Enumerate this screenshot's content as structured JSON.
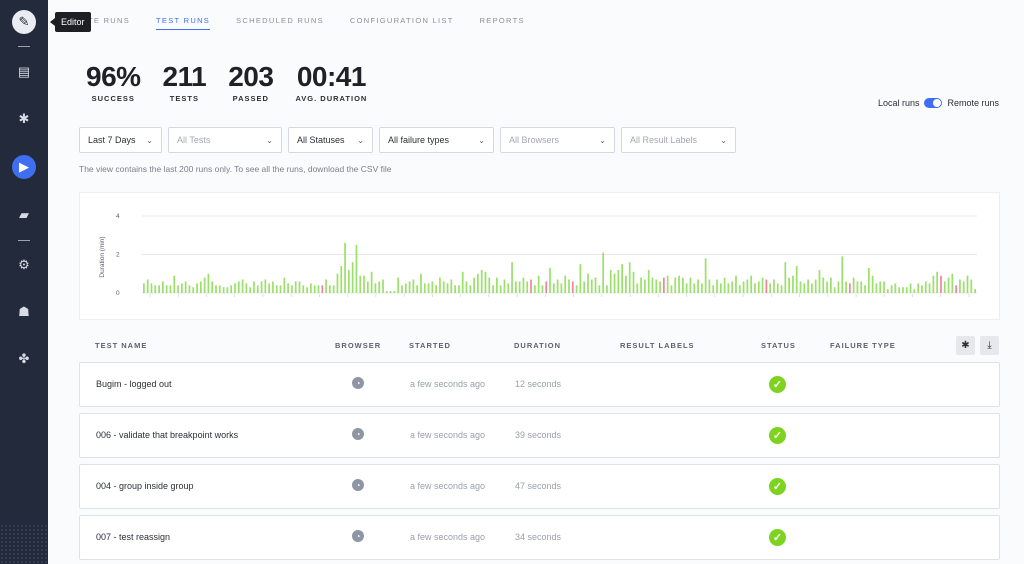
{
  "sidebar": {
    "tooltip": "Editor",
    "icons": [
      "pencil-icon",
      "document-icon",
      "bug-icon",
      "play-icon",
      "folder-settings-icon",
      "gear-icon",
      "users-icon",
      "integration-icon"
    ]
  },
  "tabs": [
    {
      "label": "TE RUNS",
      "active": false
    },
    {
      "label": "TEST RUNS",
      "active": true
    },
    {
      "label": "SCHEDULED RUNS",
      "active": false
    },
    {
      "label": "CONFIGURATION LIST",
      "active": false
    },
    {
      "label": "REPORTS",
      "active": false
    }
  ],
  "stats": [
    {
      "value": "96%",
      "label": "SUCCESS"
    },
    {
      "value": "211",
      "label": "TESTS"
    },
    {
      "value": "203",
      "label": "PASSED"
    },
    {
      "value": "00:41",
      "label": "AVG. DURATION"
    }
  ],
  "toggle": {
    "left": "Local runs",
    "right": "Remote runs",
    "state": "remote"
  },
  "filters": [
    {
      "label": "Last 7 Days",
      "placeholder": false
    },
    {
      "label": "All Tests",
      "placeholder": true
    },
    {
      "label": "All Statuses",
      "placeholder": false
    },
    {
      "label": "All failure types",
      "placeholder": false
    },
    {
      "label": "All Browsers",
      "placeholder": true
    },
    {
      "label": "All Result Labels",
      "placeholder": true
    }
  ],
  "note": "The view contains the last 200 runs only. To see all the runs, download the CSV file",
  "chart_data": {
    "type": "bar",
    "ylabel": "Duration (min)",
    "yticks": [
      "4",
      "2",
      "0"
    ],
    "ylim": [
      0,
      4
    ],
    "grid": true,
    "colors": {
      "pass": "#9be06a",
      "fail": "#f4829c"
    },
    "values": [
      0.5,
      0.7,
      0.5,
      0.4,
      0.4,
      0.6,
      0.4,
      0.4,
      0.9,
      0.4,
      0.5,
      0.6,
      0.4,
      0.3,
      0.5,
      0.6,
      0.8,
      1.0,
      0.6,
      0.4,
      0.4,
      0.3,
      0.3,
      0.4,
      0.5,
      0.6,
      0.7,
      0.5,
      0.3,
      0.6,
      0.4,
      0.6,
      0.7,
      0.5,
      0.6,
      0.4,
      0.4,
      0.8,
      0.5,
      0.4,
      0.6,
      0.6,
      0.4,
      0.3,
      0.5,
      0.4,
      0.4,
      0.4,
      0.7,
      0.4,
      0.4,
      1.0,
      1.4,
      2.6,
      1.2,
      1.6,
      2.5,
      0.9,
      0.9,
      0.6,
      1.1,
      0.5,
      0.6,
      0.7,
      0.1,
      0.1,
      0.1,
      0.8,
      0.4,
      0.5,
      0.6,
      0.7,
      0.4,
      1.0,
      0.5,
      0.5,
      0.6,
      0.4,
      0.8,
      0.6,
      0.5,
      0.7,
      0.4,
      0.4,
      1.1,
      0.6,
      0.4,
      0.8,
      1.0,
      1.2,
      1.1,
      0.8,
      0.4,
      0.8,
      0.4,
      0.7,
      0.5,
      1.6,
      0.6,
      0.6,
      0.8,
      0.6,
      0.7,
      0.4,
      0.9,
      0.4,
      0.6,
      1.3,
      0.5,
      0.7,
      0.5,
      0.9,
      0.7,
      0.6,
      0.4,
      1.5,
      0.6,
      1.0,
      0.7,
      0.8,
      0.4,
      2.1,
      0.4,
      1.2,
      1.0,
      1.2,
      1.5,
      0.9,
      1.6,
      1.1,
      0.5,
      0.8,
      0.7,
      1.2,
      0.8,
      0.7,
      0.6,
      0.8,
      0.9,
      0.4,
      0.8,
      0.9,
      0.8,
      0.5,
      0.8,
      0.5,
      0.7,
      0.5,
      1.8,
      0.7,
      0.4,
      0.7,
      0.5,
      0.8,
      0.5,
      0.6,
      0.9,
      0.4,
      0.6,
      0.7,
      0.9,
      0.5,
      0.6,
      0.8,
      0.7,
      0.5,
      0.7,
      0.5,
      0.4,
      1.6,
      0.8,
      0.9,
      1.4,
      0.6,
      0.5,
      0.7,
      0.5,
      0.7,
      1.2,
      0.8,
      0.6,
      0.8,
      0.3,
      0.6,
      1.9,
      0.6,
      0.5,
      0.8,
      0.6,
      0.6,
      0.4,
      1.3,
      0.9,
      0.5,
      0.6,
      0.6,
      0.2,
      0.4,
      0.5,
      0.3,
      0.3,
      0.3,
      0.5,
      0.2,
      0.5,
      0.4,
      0.6,
      0.5,
      0.9,
      1.1,
      0.9,
      0.6,
      0.8,
      1.0,
      0.4,
      0.7,
      0.6,
      0.9,
      0.7,
      0.2
    ],
    "failed_indices": [
      47,
      102,
      106,
      113,
      137,
      164,
      186,
      210,
      214
    ]
  },
  "table": {
    "headers": [
      "TEST NAME",
      "BROWSER",
      "STARTED",
      "DURATION",
      "RESULT LABELS",
      "STATUS",
      "FAILURE TYPE"
    ],
    "rows": [
      {
        "name": "Bugim - logged out",
        "started": "a few seconds ago",
        "duration": "12 seconds",
        "status": "passed"
      },
      {
        "name": "006 - validate that breakpoint works",
        "started": "a few seconds ago",
        "duration": "39 seconds",
        "status": "passed"
      },
      {
        "name": "004 - group inside group",
        "started": "a few seconds ago",
        "duration": "47 seconds",
        "status": "passed"
      },
      {
        "name": "007 - test reassign",
        "started": "a few seconds ago",
        "duration": "34 seconds",
        "status": "passed"
      }
    ]
  }
}
